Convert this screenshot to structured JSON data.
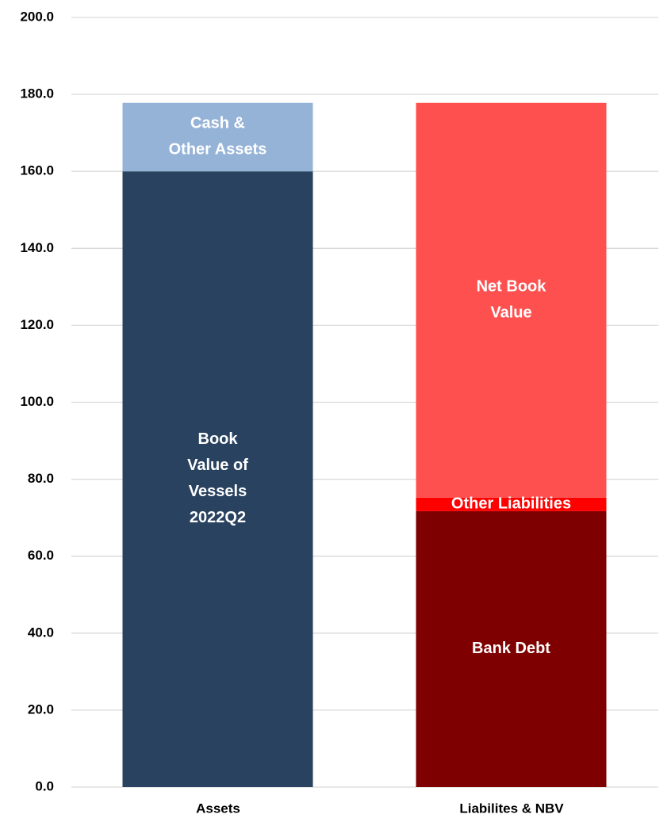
{
  "chart_data": {
    "type": "stacked_bar",
    "categories": [
      "Assets",
      "Liabilites & NBV"
    ],
    "series": [
      {
        "label": [
          "Book",
          "Value of",
          "Vessels",
          "2022Q2"
        ],
        "color": "#284260",
        "values": [
          160,
          null
        ]
      },
      {
        "label": [
          "Cash &",
          "Other Assets"
        ],
        "color": "#95b3d7",
        "values": [
          17.8,
          null
        ]
      },
      {
        "label": [
          "Bank Debt"
        ],
        "color": "#7f0000",
        "values": [
          null,
          71.7
        ]
      },
      {
        "label": [
          "Other Liabilities"
        ],
        "color": "#ff0000",
        "values": [
          null,
          3.5
        ]
      },
      {
        "label": [
          "Net Book",
          "Value"
        ],
        "color": "#ff5050",
        "values": [
          null,
          102.6
        ]
      }
    ],
    "ylim": [
      0,
      200
    ],
    "yticks": [
      {
        "value": 0,
        "label": "0.0"
      },
      {
        "value": 20,
        "label": "20.0"
      },
      {
        "value": 40,
        "label": "40.0"
      },
      {
        "value": 60,
        "label": "60.0"
      },
      {
        "value": 80,
        "label": "80.0"
      },
      {
        "value": 100,
        "label": "100.0"
      },
      {
        "value": 120,
        "label": "120.0"
      },
      {
        "value": 140,
        "label": "140.0"
      },
      {
        "value": 160,
        "label": "160.0"
      },
      {
        "value": 180,
        "label": "180.0"
      },
      {
        "value": 200,
        "label": "200.0"
      }
    ],
    "grid": true
  }
}
